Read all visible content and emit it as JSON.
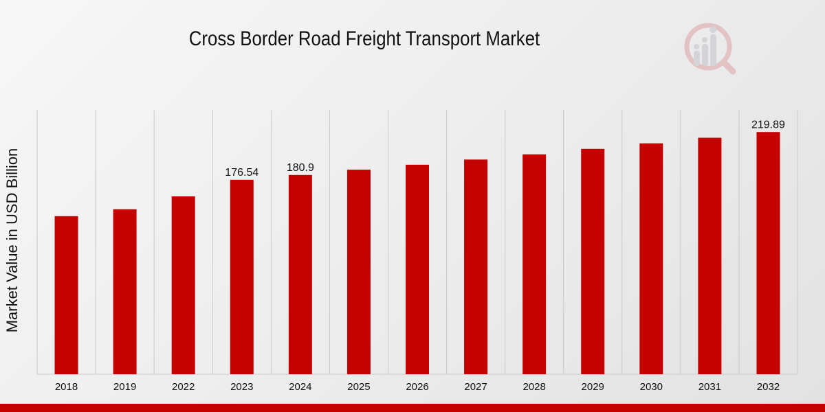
{
  "chart_data": {
    "type": "bar",
    "title": "Cross Border Road Freight Transport Market",
    "xlabel": "",
    "ylabel": "Market Value in USD Billion",
    "categories": [
      "2018",
      "2019",
      "2022",
      "2023",
      "2024",
      "2025",
      "2026",
      "2027",
      "2028",
      "2029",
      "2030",
      "2031",
      "2032"
    ],
    "values": [
      143.5,
      149.8,
      161.5,
      176.54,
      180.9,
      185.7,
      190.2,
      194.9,
      199.6,
      204.6,
      209.6,
      214.7,
      219.89
    ],
    "data_labels": {
      "2023": "176.54",
      "2024": "180.9",
      "2032": "219.89"
    },
    "ylim": [
      0,
      240
    ],
    "grid": "vertical",
    "legend": "none",
    "colors": {
      "bar": "#c40000",
      "grid": "#c8c8c8",
      "accent": "#c40000"
    }
  },
  "logo": {
    "icon": "analytics-magnifier-logo"
  }
}
